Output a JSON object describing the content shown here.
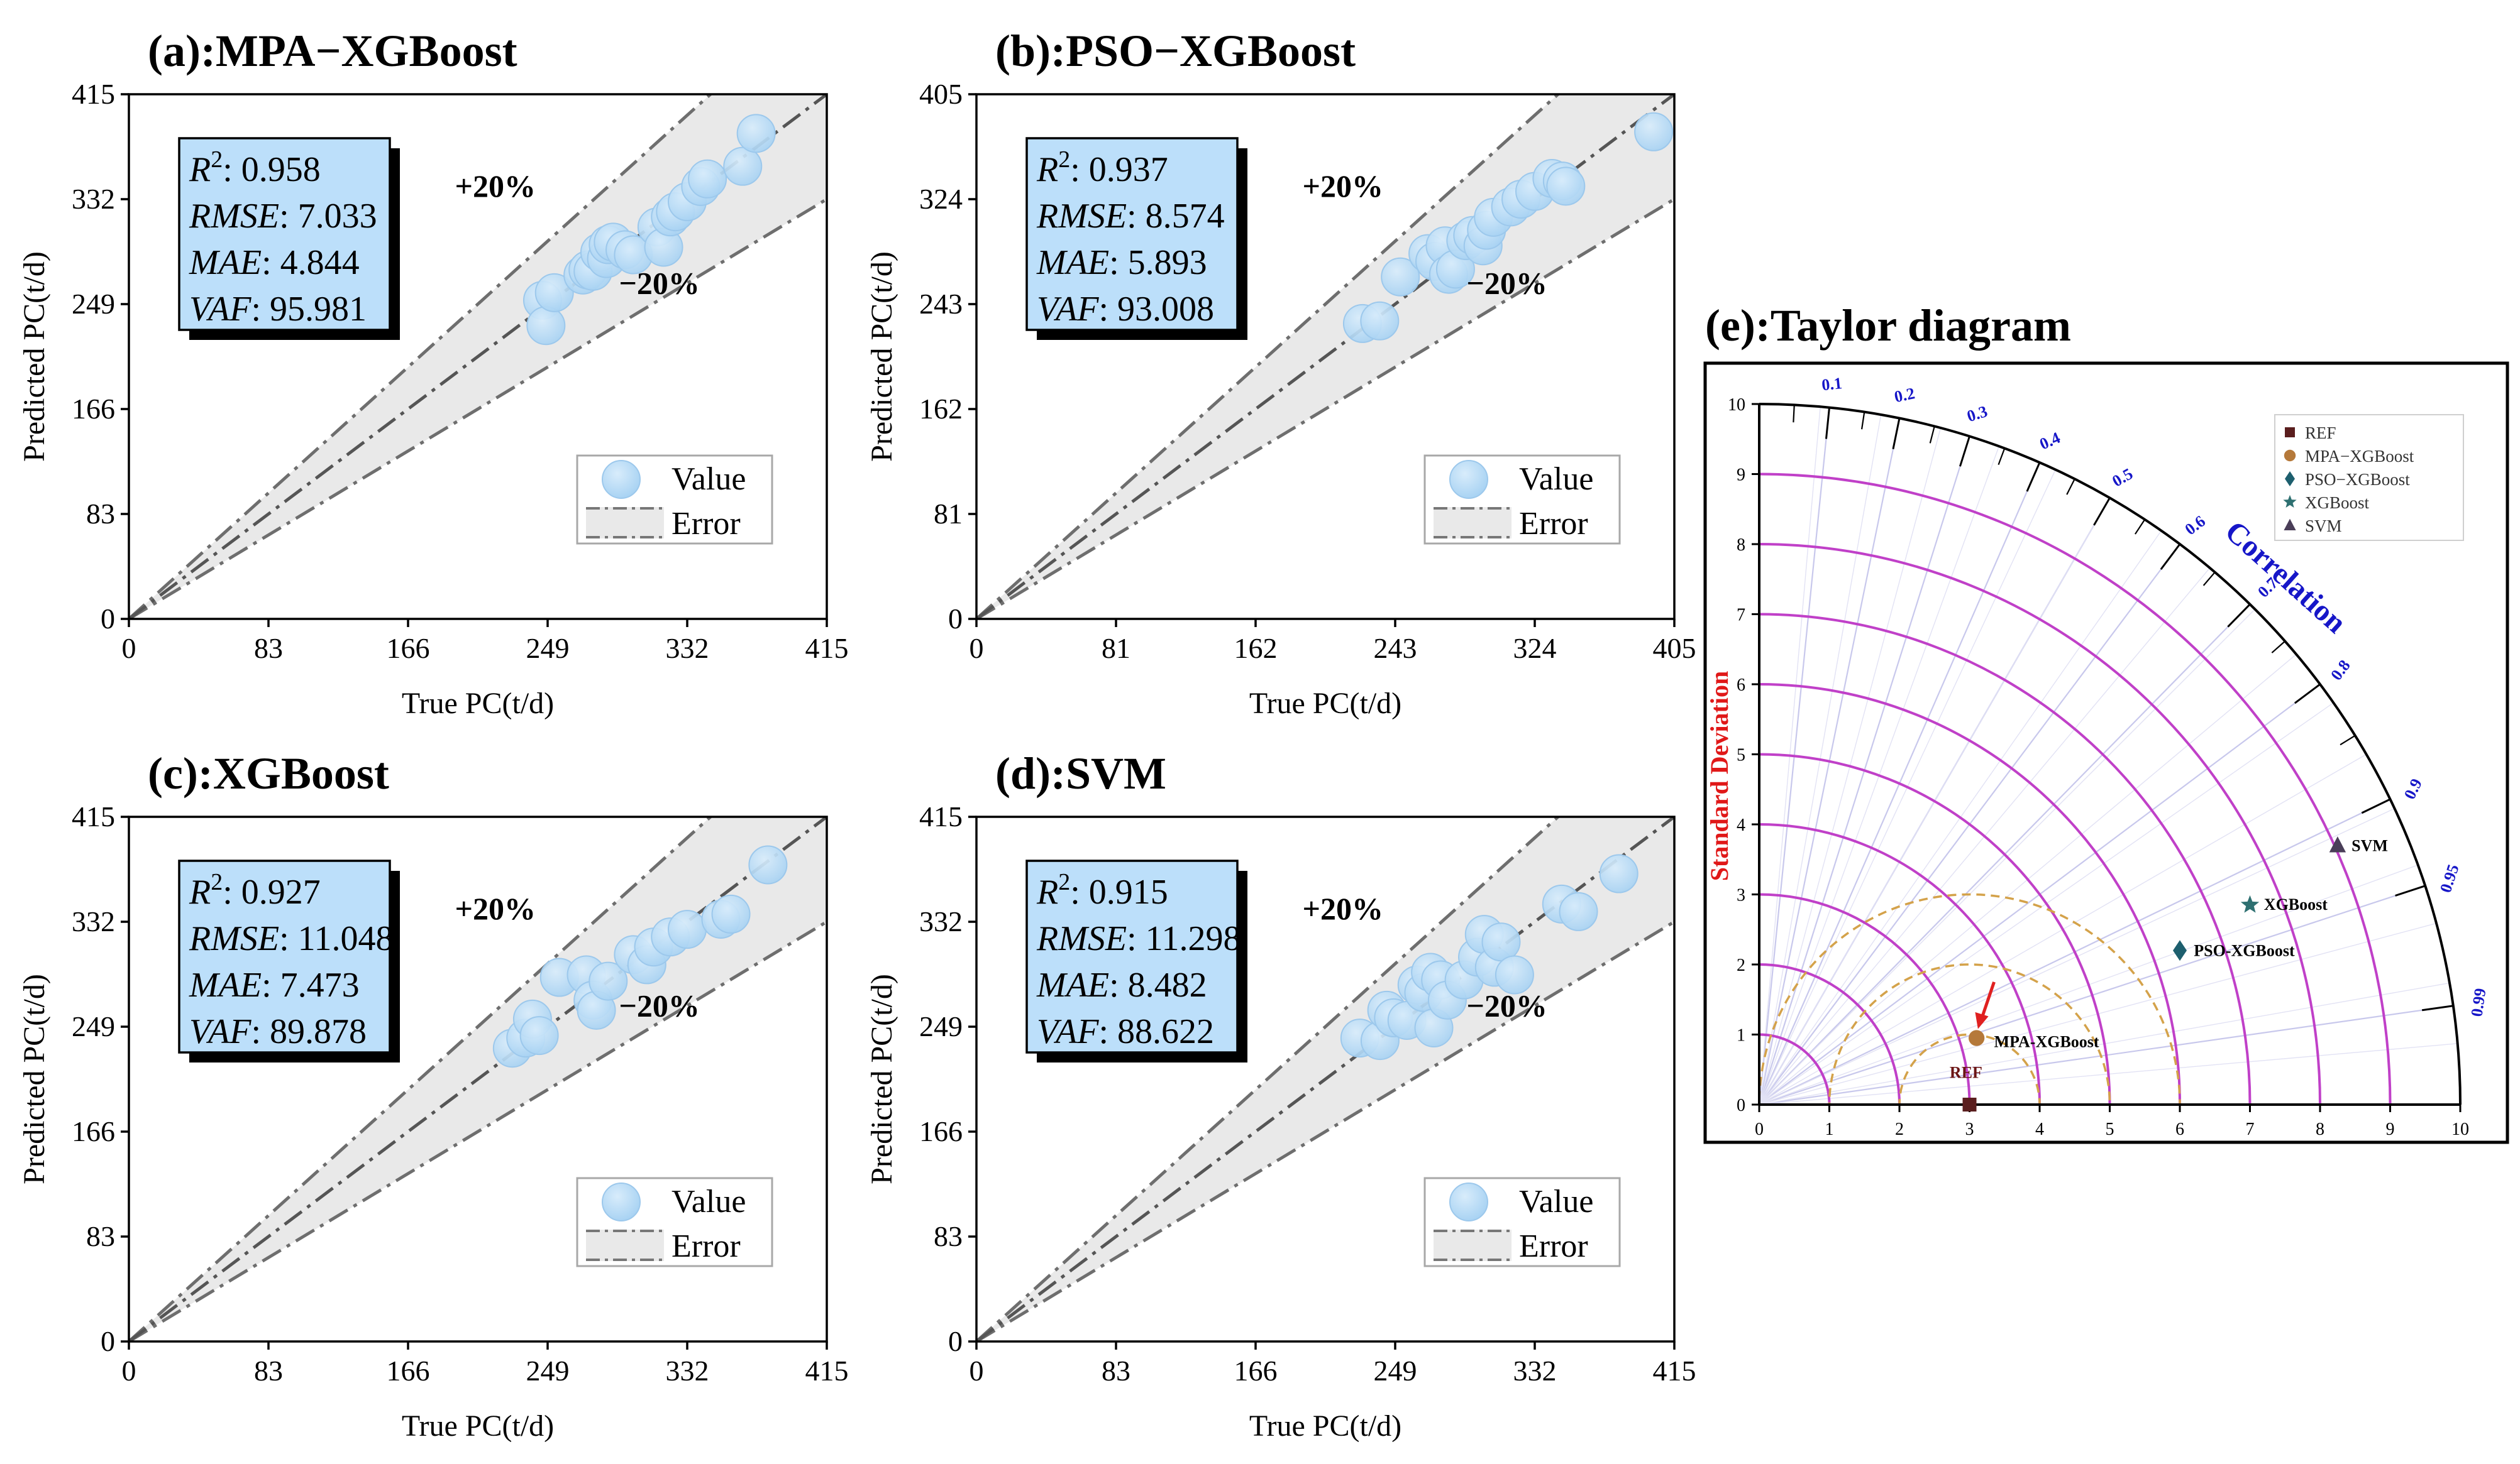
{
  "figure": {
    "panels": [
      {
        "id": "a",
        "title": "(a):MPA−XGBoost",
        "xlabel": "True PC(t/d)",
        "ylabel": "Predicted PC(t/d)",
        "ticks": [
          0,
          83,
          166,
          249,
          332,
          415
        ],
        "max": 415,
        "band_upper": "+20%",
        "band_lower": "−20%",
        "legend": {
          "value": "Value",
          "error": "Error"
        },
        "metrics": [
          {
            "label": "R",
            "sup": "2",
            "value": ": 0.958"
          },
          {
            "label": "RMSE",
            "sup": "",
            "value": ": 7.033"
          },
          {
            "label": "MAE",
            "sup": "",
            "value": ": 4.844"
          },
          {
            "label": "VAF",
            "sup": "",
            "value": ": 95.981"
          }
        ]
      },
      {
        "id": "b",
        "title": "(b):PSO−XGBoost",
        "xlabel": "True PC(t/d)",
        "ylabel": "Predicted PC(t/d)",
        "ticks": [
          0,
          81,
          162,
          243,
          324,
          405
        ],
        "max": 405,
        "band_upper": "+20%",
        "band_lower": "−20%",
        "legend": {
          "value": "Value",
          "error": "Error"
        },
        "metrics": [
          {
            "label": "R",
            "sup": "2",
            "value": ": 0.937"
          },
          {
            "label": "RMSE",
            "sup": "",
            "value": ": 8.574"
          },
          {
            "label": "MAE",
            "sup": "",
            "value": ": 5.893"
          },
          {
            "label": "VAF",
            "sup": "",
            "value": ": 93.008"
          }
        ]
      },
      {
        "id": "c",
        "title": "(c):XGBoost",
        "xlabel": "True PC(t/d)",
        "ylabel": "Predicted PC(t/d)",
        "ticks": [
          0,
          83,
          166,
          249,
          332,
          415
        ],
        "max": 415,
        "band_upper": "+20%",
        "band_lower": "−20%",
        "legend": {
          "value": "Value",
          "error": "Error"
        },
        "metrics": [
          {
            "label": "R",
            "sup": "2",
            "value": ": 0.927"
          },
          {
            "label": "RMSE",
            "sup": "",
            "value": ": 11.048"
          },
          {
            "label": "MAE",
            "sup": "",
            "value": ": 7.473"
          },
          {
            "label": "VAF",
            "sup": "",
            "value": ": 89.878"
          }
        ]
      },
      {
        "id": "d",
        "title": "(d):SVM",
        "xlabel": "True PC(t/d)",
        "ylabel": "Predicted PC(t/d)",
        "ticks": [
          0,
          83,
          166,
          249,
          332,
          415
        ],
        "max": 415,
        "band_upper": "+20%",
        "band_lower": "−20%",
        "legend": {
          "value": "Value",
          "error": "Error"
        },
        "metrics": [
          {
            "label": "R",
            "sup": "2",
            "value": ": 0.915"
          },
          {
            "label": "RMSE",
            "sup": "",
            "value": ": 11.298"
          },
          {
            "label": "MAE",
            "sup": "",
            "value": ": 8.482"
          },
          {
            "label": "VAF",
            "sup": "",
            "value": ": 88.622"
          }
        ]
      }
    ],
    "taylor": {
      "title": "(e):Taylor diagram",
      "ylabel": "Standard Deviation",
      "corr_label": "Correlation",
      "sd_ticks": [
        0,
        1,
        2,
        3,
        4,
        5,
        6,
        7,
        8,
        9,
        10
      ],
      "corr_ticks": [
        0.1,
        0.2,
        0.3,
        0.4,
        0.5,
        0.6,
        0.7,
        0.8,
        0.9,
        0.95,
        0.99
      ],
      "ref_label": "REF",
      "colors": {
        "REF": "#5a1e1e",
        "MPA-XGBoost": "#b5793a",
        "PSO-XGBoost": "#1d5f6e",
        "XGBoost": "#2e7071",
        "SVM": "#4a3e58",
        "sd_arc": "#c040c8",
        "rmsd_arc": "#d4a24a",
        "corr_line": "#c8c8ec",
        "corr_text": "#1616c8",
        "sd_text": "#e01818",
        "arrow": "#e02020"
      },
      "legend": [
        {
          "name": "REF",
          "marker": "square"
        },
        {
          "name": "MPA−XGBoost",
          "marker": "circle"
        },
        {
          "name": "PSO−XGBoost",
          "marker": "diamond"
        },
        {
          "name": "XGBoost",
          "marker": "star"
        },
        {
          "name": "SVM",
          "marker": "triangle"
        }
      ],
      "point_labels": {
        "REF": "REF",
        "MPA-XGBoost": "MPA-XGBoost",
        "PSO-XGBoost": "PSO-XGBoost",
        "XGBoost": "XGBoost",
        "SVM": "SVM"
      }
    }
  },
  "chart_data": [
    {
      "type": "scatter",
      "title": "(a):MPA−XGBoost",
      "xlabel": "True PC(t/d)",
      "ylabel": "Predicted PC(t/d)",
      "xlim": [
        0,
        415
      ],
      "ylim": [
        0,
        415
      ],
      "error_band": [
        -20,
        20
      ],
      "points": [
        [
          246,
          252
        ],
        [
          248,
          232
        ],
        [
          253,
          258
        ],
        [
          270,
          272
        ],
        [
          273,
          276
        ],
        [
          276,
          275
        ],
        [
          280,
          290
        ],
        [
          284,
          285
        ],
        [
          285,
          296
        ],
        [
          288,
          298
        ],
        [
          295,
          292
        ],
        [
          300,
          288
        ],
        [
          314,
          310
        ],
        [
          318,
          294
        ],
        [
          322,
          318
        ],
        [
          325,
          322
        ],
        [
          332,
          330
        ],
        [
          340,
          342
        ],
        [
          344,
          348
        ],
        [
          365,
          358
        ],
        [
          373,
          384
        ]
      ]
    },
    {
      "type": "scatter",
      "title": "(b):PSO−XGBoost",
      "xlabel": "True PC(t/d)",
      "ylabel": "Predicted PC(t/d)",
      "xlim": [
        0,
        405
      ],
      "ylim": [
        0,
        405
      ],
      "error_band": [
        -20,
        20
      ],
      "points": [
        [
          224,
          228
        ],
        [
          234,
          230
        ],
        [
          246,
          264
        ],
        [
          262,
          282
        ],
        [
          266,
          276
        ],
        [
          272,
          288
        ],
        [
          274,
          266
        ],
        [
          278,
          270
        ],
        [
          284,
          292
        ],
        [
          288,
          296
        ],
        [
          294,
          288
        ],
        [
          296,
          300
        ],
        [
          300,
          310
        ],
        [
          310,
          318
        ],
        [
          316,
          324
        ],
        [
          324,
          330
        ],
        [
          334,
          340
        ],
        [
          340,
          338
        ],
        [
          342,
          334
        ],
        [
          393,
          376
        ]
      ]
    },
    {
      "type": "scatter",
      "title": "(c):XGBoost",
      "xlabel": "True PC(t/d)",
      "ylabel": "Predicted PC(t/d)",
      "xlim": [
        0,
        415
      ],
      "ylim": [
        0,
        415
      ],
      "error_band": [
        -20,
        20
      ],
      "points": [
        [
          228,
          232
        ],
        [
          236,
          240
        ],
        [
          240,
          255
        ],
        [
          244,
          242
        ],
        [
          256,
          288
        ],
        [
          272,
          290
        ],
        [
          276,
          270
        ],
        [
          278,
          262
        ],
        [
          285,
          285
        ],
        [
          300,
          306
        ],
        [
          308,
          298
        ],
        [
          312,
          312
        ],
        [
          322,
          320
        ],
        [
          332,
          326
        ],
        [
          352,
          334
        ],
        [
          358,
          338
        ],
        [
          380,
          377
        ]
      ]
    },
    {
      "type": "scatter",
      "title": "(d):SVM",
      "xlabel": "True PC(t/d)",
      "ylabel": "Predicted PC(t/d)",
      "xlim": [
        0,
        415
      ],
      "ylim": [
        0,
        415
      ],
      "error_band": [
        -20,
        20
      ],
      "points": [
        [
          228,
          240
        ],
        [
          240,
          238
        ],
        [
          244,
          262
        ],
        [
          248,
          256
        ],
        [
          256,
          254
        ],
        [
          262,
          282
        ],
        [
          266,
          276
        ],
        [
          270,
          292
        ],
        [
          272,
          248
        ],
        [
          276,
          286
        ],
        [
          280,
          270
        ],
        [
          290,
          286
        ],
        [
          298,
          304
        ],
        [
          302,
          322
        ],
        [
          308,
          296
        ],
        [
          312,
          316
        ],
        [
          320,
          290
        ],
        [
          348,
          346
        ],
        [
          358,
          340
        ],
        [
          382,
          370
        ]
      ]
    },
    {
      "type": "taylor",
      "title": "(e):Taylor diagram",
      "ylabel": "Standard Deviation",
      "corr_label": "Correlation",
      "sd_range": [
        0,
        10
      ],
      "points": [
        {
          "name": "REF",
          "x": 3.0,
          "y": 0.0
        },
        {
          "name": "MPA-XGBoost",
          "x": 3.1,
          "y": 0.95
        },
        {
          "name": "PSO-XGBoost",
          "x": 6.0,
          "y": 2.2
        },
        {
          "name": "XGBoost",
          "x": 7.0,
          "y": 2.85
        },
        {
          "name": "SVM",
          "x": 8.25,
          "y": 3.7
        }
      ]
    }
  ]
}
